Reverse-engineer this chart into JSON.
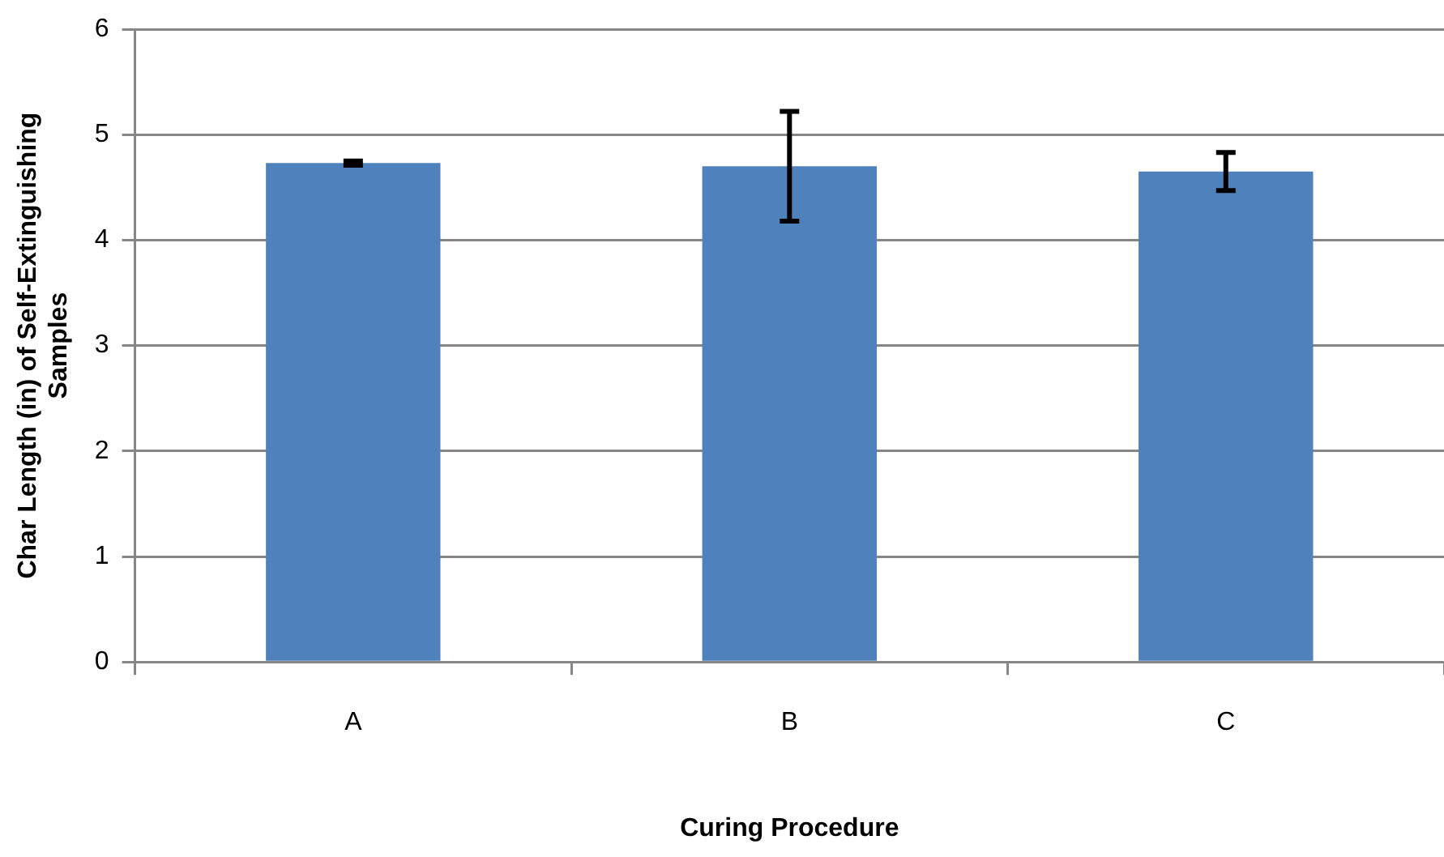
{
  "chart_data": {
    "type": "bar",
    "xlabel": "Curing Procedure",
    "ylabel": "Char Length (in) of Self-Extinguishing Samples",
    "categories": [
      "A",
      "B",
      "C"
    ],
    "values": [
      4.73,
      4.7,
      4.65
    ],
    "errors": [
      0.02,
      0.52,
      0.18
    ],
    "color": "#4f81bd",
    "ylim": [
      0,
      6
    ],
    "yticks": [
      0,
      1,
      2,
      3,
      4,
      5,
      6
    ],
    "grid": "y",
    "legend": false
  }
}
